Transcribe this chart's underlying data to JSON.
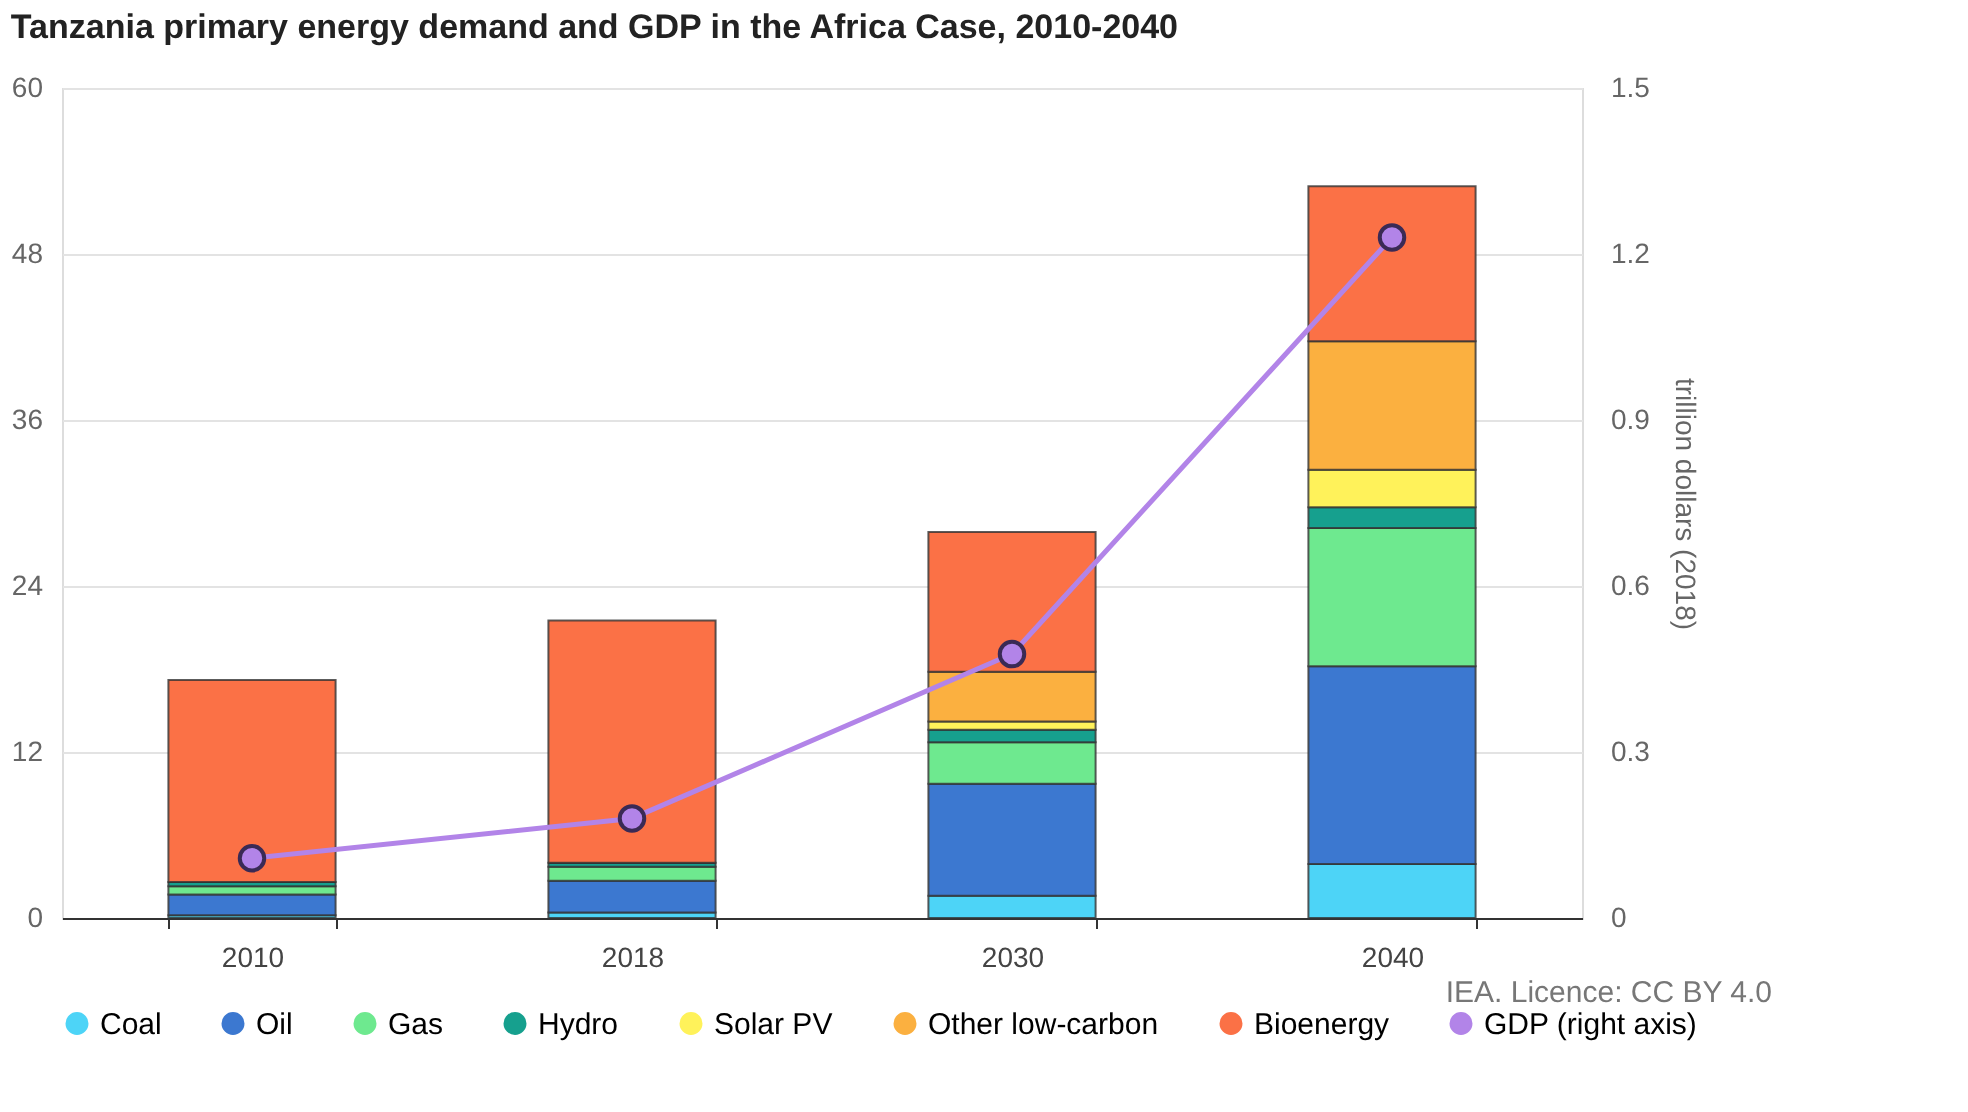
{
  "chart_data": {
    "type": "bar",
    "title": "Tanzania primary energy demand and GDP in the Africa Case, 2010-2040",
    "categories": [
      "2010",
      "2018",
      "2030",
      "2040"
    ],
    "stacked": true,
    "series": [
      {
        "name": "Coal",
        "color": "#4dd4f7",
        "values": [
          0.2,
          0.4,
          1.6,
          3.9
        ]
      },
      {
        "name": "Oil",
        "color": "#3c78d0",
        "values": [
          1.5,
          2.3,
          8.1,
          14.3
        ]
      },
      {
        "name": "Gas",
        "color": "#6ee98f",
        "values": [
          0.6,
          1.0,
          3.0,
          10.0
        ]
      },
      {
        "name": "Hydro",
        "color": "#16a08e",
        "values": [
          0.3,
          0.3,
          0.9,
          1.5
        ]
      },
      {
        "name": "Solar PV",
        "color": "#fff25a",
        "values": [
          0.0,
          0.0,
          0.6,
          2.7
        ]
      },
      {
        "name": "Other low-carbon",
        "color": "#fbb040",
        "values": [
          0.0,
          0.0,
          3.6,
          9.3
        ]
      },
      {
        "name": "Bioenergy",
        "color": "#fb7146",
        "values": [
          14.6,
          17.5,
          10.1,
          11.2
        ]
      },
      {
        "name": "GDP (right axis)",
        "color": "#b284e8",
        "type": "line",
        "axis": "y2",
        "marker": "circle",
        "values": [
          0.108,
          0.18,
          0.477,
          1.23
        ]
      }
    ],
    "ylim": [
      0,
      60
    ],
    "yticks": [
      0,
      12,
      24,
      36,
      48,
      60
    ],
    "y2lim": [
      0,
      1.5
    ],
    "y2ticks": [
      0,
      0.3,
      0.6,
      0.9,
      1.2,
      1.5
    ],
    "y2label": "trillion dollars (2018)",
    "grid": "y",
    "legend": "bottom",
    "annotations": [
      "IEA. Licence: CC BY 4.0"
    ]
  }
}
